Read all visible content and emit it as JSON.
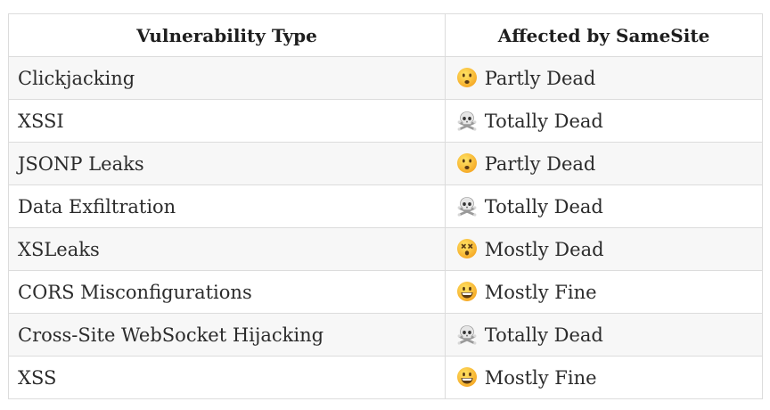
{
  "table": {
    "headers": [
      "Vulnerability Type",
      "Affected by SameSite"
    ],
    "rows": [
      {
        "type": "Clickjacking",
        "status": "Partly Dead",
        "icon": "frowning-face-icon"
      },
      {
        "type": "XSSI",
        "status": "Totally Dead",
        "icon": "skull-crossbones-icon"
      },
      {
        "type": "JSONP Leaks",
        "status": "Partly Dead",
        "icon": "frowning-face-icon"
      },
      {
        "type": "Data Exfiltration",
        "status": "Totally Dead",
        "icon": "skull-crossbones-icon"
      },
      {
        "type": "XSLeaks",
        "status": "Mostly Dead",
        "icon": "dizzy-face-icon"
      },
      {
        "type": "CORS Misconfigurations",
        "status": "Mostly Fine",
        "icon": "grinning-face-icon"
      },
      {
        "type": "Cross-Site WebSocket Hijacking",
        "status": "Totally Dead",
        "icon": "skull-crossbones-icon"
      },
      {
        "type": "XSS",
        "status": "Mostly Fine",
        "icon": "grinning-face-icon"
      }
    ]
  }
}
